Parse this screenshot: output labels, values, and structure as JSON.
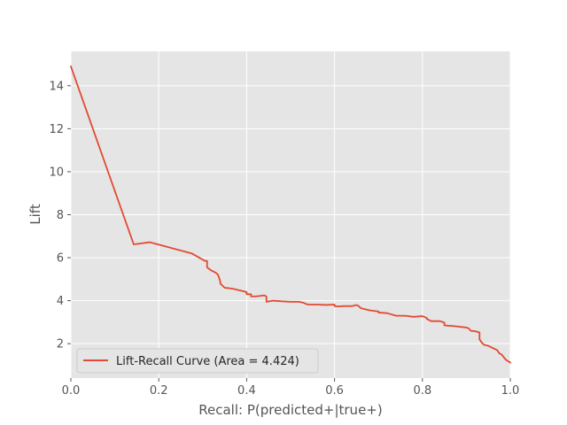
{
  "chart_data": {
    "type": "line",
    "title": "",
    "xlabel": "Recall: P(predicted+|true+)",
    "ylabel": "Lift",
    "xlim": [
      0,
      1.0
    ],
    "ylim": [
      0.4,
      15.6
    ],
    "grid": true,
    "legend_position": "bottom-left",
    "x_ticks": [
      "0.0",
      "0.2",
      "0.4",
      "0.6",
      "0.8",
      "1.0"
    ],
    "y_ticks": [
      "2",
      "4",
      "6",
      "8",
      "10",
      "12",
      "14"
    ],
    "series": [
      {
        "name": "Lift-Recall Curve  (Area = 4.424)",
        "color": "#E24A33",
        "x": [
          0.0,
          0.143,
          0.18,
          0.275,
          0.305,
          0.31,
          0.31,
          0.32,
          0.325,
          0.33,
          0.335,
          0.34,
          0.34,
          0.345,
          0.35,
          0.36,
          0.37,
          0.38,
          0.39,
          0.4,
          0.4,
          0.41,
          0.41,
          0.42,
          0.43,
          0.44,
          0.445,
          0.445,
          0.46,
          0.48,
          0.5,
          0.52,
          0.53,
          0.535,
          0.54,
          0.56,
          0.58,
          0.6,
          0.6,
          0.61,
          0.62,
          0.64,
          0.65,
          0.655,
          0.66,
          0.68,
          0.7,
          0.7,
          0.72,
          0.74,
          0.75,
          0.76,
          0.78,
          0.8,
          0.81,
          0.81,
          0.82,
          0.84,
          0.85,
          0.85,
          0.87,
          0.88,
          0.9,
          0.905,
          0.91,
          0.92,
          0.93,
          0.93,
          0.935,
          0.94,
          0.95,
          0.96,
          0.97,
          0.975,
          0.98,
          0.99,
          1.0
        ],
        "y": [
          14.9,
          6.62,
          6.72,
          6.2,
          5.85,
          5.85,
          5.55,
          5.4,
          5.35,
          5.3,
          5.2,
          4.9,
          4.8,
          4.7,
          4.6,
          4.58,
          4.55,
          4.5,
          4.45,
          4.4,
          4.3,
          4.3,
          4.2,
          4.2,
          4.22,
          4.25,
          4.2,
          3.95,
          4.0,
          3.97,
          3.95,
          3.95,
          3.9,
          3.85,
          3.82,
          3.82,
          3.8,
          3.82,
          3.75,
          3.73,
          3.75,
          3.75,
          3.8,
          3.75,
          3.65,
          3.55,
          3.5,
          3.45,
          3.42,
          3.3,
          3.3,
          3.3,
          3.25,
          3.28,
          3.2,
          3.15,
          3.05,
          3.05,
          2.98,
          2.85,
          2.82,
          2.8,
          2.75,
          2.72,
          2.6,
          2.58,
          2.52,
          2.2,
          2.05,
          1.95,
          1.9,
          1.8,
          1.7,
          1.55,
          1.5,
          1.25,
          1.12
        ]
      }
    ]
  }
}
